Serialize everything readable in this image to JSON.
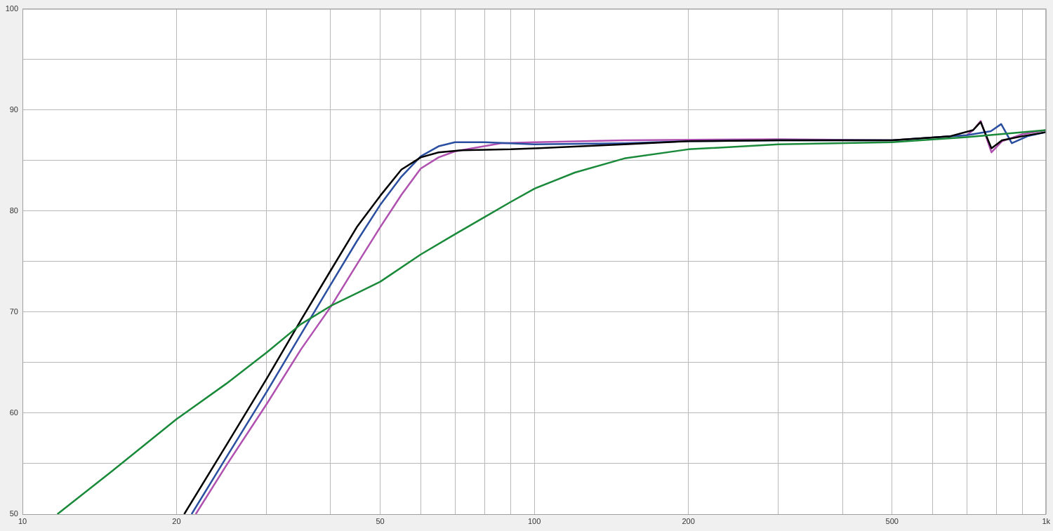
{
  "chart_data": {
    "type": "line",
    "log": "x",
    "grid": true,
    "legend": false,
    "marker": "none",
    "line_style": "solid",
    "xlim": [
      10,
      1000
    ],
    "ylim": [
      50,
      100
    ],
    "xticks": [
      10,
      20,
      {
        "value": 30,
        "label": null
      },
      {
        "value": 40,
        "label": null
      },
      50,
      {
        "value": 60,
        "label": null
      },
      {
        "value": 70,
        "label": null
      },
      {
        "value": 80,
        "label": null
      },
      {
        "value": 90,
        "label": null
      },
      100,
      200,
      {
        "value": 300,
        "label": null
      },
      {
        "value": 400,
        "label": null
      },
      500,
      {
        "value": 600,
        "label": null
      },
      {
        "value": 700,
        "label": null
      },
      {
        "value": 800,
        "label": null
      },
      {
        "value": 900,
        "label": null
      },
      {
        "value": 1000,
        "label": "1k"
      }
    ],
    "yticks": [
      50,
      {
        "value": 55,
        "label": null
      },
      60,
      {
        "value": 65,
        "label": null
      },
      70,
      {
        "value": 75,
        "label": null
      },
      80,
      {
        "value": 85,
        "label": null
      },
      90,
      {
        "value": 95,
        "label": null
      },
      100
    ],
    "series": [
      {
        "color": "#1a8a3a",
        "x": [
          11.7,
          15,
          20,
          25,
          30,
          35,
          40,
          50,
          60,
          70,
          80,
          90,
          100,
          120,
          150,
          200,
          300,
          500,
          700,
          1000
        ],
        "values": [
          50,
          54.3,
          59.4,
          62.9,
          66.0,
          68.8,
          70.6,
          73.0,
          75.7,
          77.7,
          79.4,
          80.9,
          82.2,
          83.8,
          85.2,
          86.1,
          86.6,
          86.8,
          87.3,
          88.0
        ]
      },
      {
        "color": "#000000",
        "x": [
          20.7,
          25,
          30,
          35,
          40,
          45,
          50,
          55,
          60,
          65,
          72,
          90,
          100,
          150,
          200,
          300,
          500,
          650,
          720,
          745,
          782,
          820,
          900,
          1000
        ],
        "values": [
          50,
          56.8,
          63.4,
          69.2,
          74.1,
          78.4,
          81.5,
          84.1,
          85.3,
          85.8,
          86.0,
          86.1,
          86.2,
          86.6,
          86.9,
          87.0,
          87.0,
          87.4,
          88.0,
          88.8,
          86.2,
          87.0,
          87.4,
          87.8
        ]
      },
      {
        "color": "#2a4fa0",
        "x": [
          21.4,
          25,
          30,
          35,
          40,
          45,
          50,
          55,
          60,
          65,
          70,
          80,
          100,
          150,
          200,
          300,
          500,
          700,
          780,
          817,
          857,
          920,
          1000
        ],
        "values": [
          50,
          55.6,
          62.1,
          67.8,
          72.7,
          77.0,
          80.6,
          83.4,
          85.4,
          86.4,
          86.8,
          86.8,
          86.6,
          86.7,
          86.9,
          87.0,
          87.0,
          87.5,
          87.9,
          88.6,
          86.7,
          87.4,
          87.8
        ]
      },
      {
        "color": "#b050b0",
        "x": [
          21.8,
          25,
          30,
          35,
          40,
          45,
          50,
          55,
          60,
          65,
          70,
          86,
          100,
          150,
          300,
          500,
          700,
          720,
          745,
          782,
          820,
          900,
          1000
        ],
        "values": [
          50,
          54.8,
          60.9,
          66.3,
          70.5,
          74.7,
          78.4,
          81.6,
          84.2,
          85.3,
          85.9,
          86.7,
          86.8,
          87.0,
          87.1,
          87.0,
          87.5,
          88.0,
          88.9,
          85.8,
          86.9,
          87.6,
          88.0
        ]
      }
    ]
  }
}
